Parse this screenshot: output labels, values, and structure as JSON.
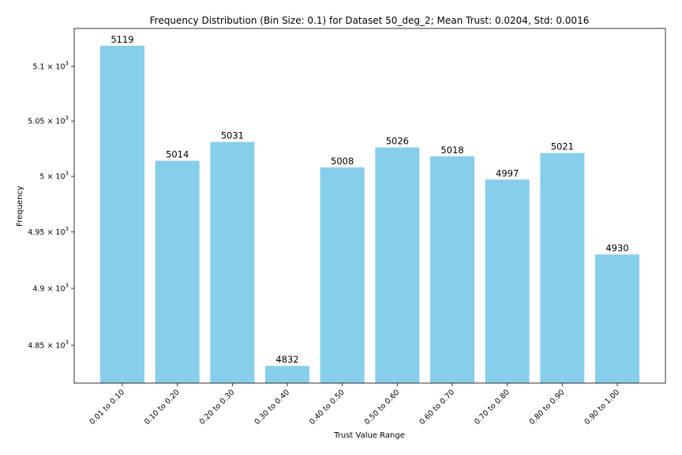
{
  "chart_data": {
    "type": "bar",
    "title": "Frequency Distribution (Bin Size: 0.1) for Dataset 50_deg_2; Mean Trust: 0.0204, Std: 0.0016",
    "xlabel": "Trust Value Range",
    "ylabel": "Frequency",
    "y_scale": "log",
    "ylim": [
      4817,
      5135
    ],
    "bar_color": "#87CEEB",
    "categories": [
      "0.01 to 0.10",
      "0.10 to 0.20",
      "0.20 to 0.30",
      "0.30 to 0.40",
      "0.40 to 0.50",
      "0.50 to 0.60",
      "0.60 to 0.70",
      "0.70 to 0.80",
      "0.80 to 0.90",
      "0.90 to 1.00"
    ],
    "values": [
      5119,
      5014,
      5031,
      4832,
      5008,
      5026,
      5018,
      4997,
      5021,
      4930
    ],
    "data_labels": [
      "5119",
      "5014",
      "5031",
      "4832",
      "5008",
      "5026",
      "5018",
      "4997",
      "5021",
      "4930"
    ],
    "yticks": [
      {
        "value": 4850,
        "mantissa": "4.85",
        "base": "10",
        "exp": "3"
      },
      {
        "value": 4900,
        "mantissa": "4.9",
        "base": "10",
        "exp": "3"
      },
      {
        "value": 4950,
        "mantissa": "4.95",
        "base": "10",
        "exp": "3"
      },
      {
        "value": 5000,
        "mantissa": "5",
        "base": "10",
        "exp": "3"
      },
      {
        "value": 5050,
        "mantissa": "5.05",
        "base": "10",
        "exp": "3"
      },
      {
        "value": 5100,
        "mantissa": "5.1",
        "base": "10",
        "exp": "3"
      }
    ],
    "grid": false,
    "legend": "none"
  }
}
